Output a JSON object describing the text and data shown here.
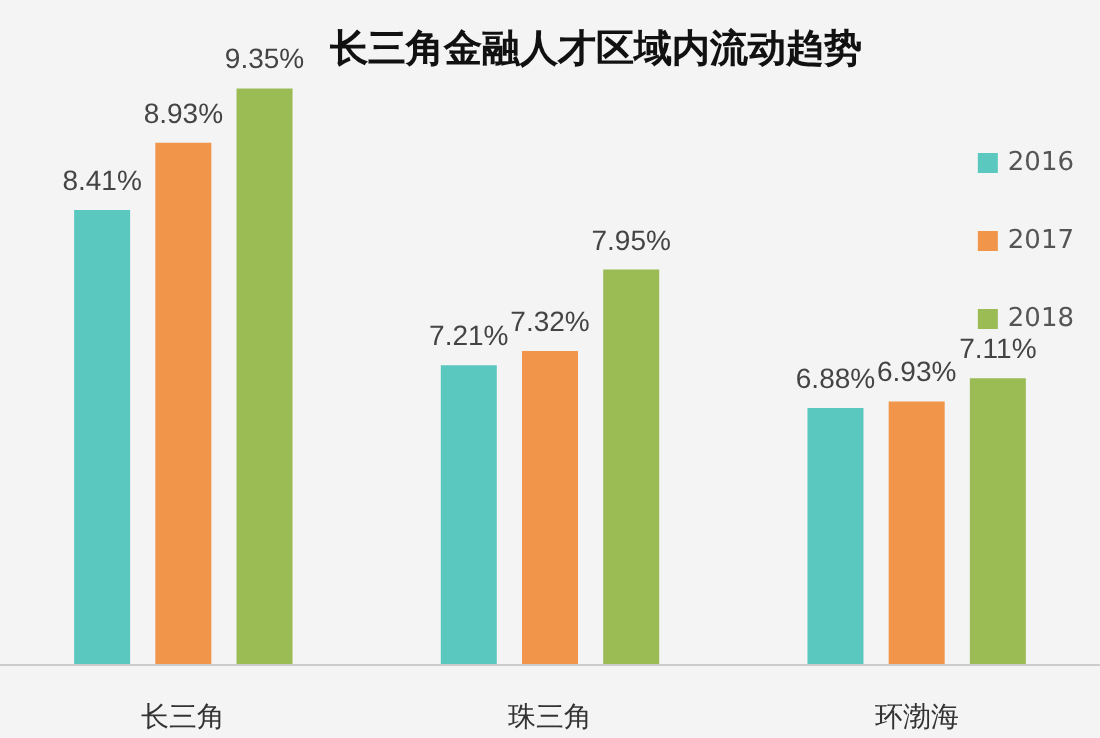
{
  "chart_data": {
    "type": "bar",
    "title": "长三角金融人才区域内流动趋势",
    "categories": [
      "长三角",
      "珠三角",
      "环渤海"
    ],
    "series": [
      {
        "name": "2016",
        "color": "#5bc8c0",
        "values": [
          8.41,
          7.21,
          6.88
        ],
        "value_labels": [
          "8.41%",
          "7.21%",
          "6.88%"
        ]
      },
      {
        "name": "2017",
        "color": "#f0954a",
        "values": [
          8.93,
          7.32,
          6.93
        ],
        "value_labels": [
          "8.93%",
          "7.32%",
          "6.93%"
        ]
      },
      {
        "name": "2018",
        "color": "#9bbb55",
        "values": [
          9.35,
          7.95,
          7.11
        ],
        "value_labels": [
          "9.35%",
          "7.95%",
          "7.11%"
        ]
      }
    ],
    "ylim": [
      4.9,
      9.4
    ],
    "tick_labels": "x",
    "legend": "right"
  }
}
